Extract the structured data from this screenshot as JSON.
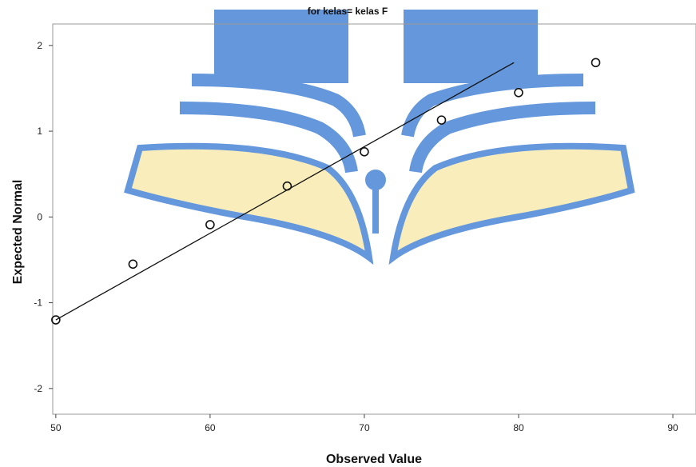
{
  "colors": {
    "watermark_blue": "#4a86d6",
    "watermark_yellow": "#f8ecb0",
    "line": "#111111",
    "marker": "#111111"
  },
  "chart_data": {
    "type": "scatter",
    "title": "for kelas= kelas F",
    "xlabel": "Observed Value",
    "ylabel": "Expected Normal",
    "xlim": [
      49.8,
      91.5
    ],
    "ylim": [
      -2.3,
      2.25
    ],
    "xticks": [
      50,
      60,
      70,
      80,
      90
    ],
    "yticks": [
      2,
      1,
      0,
      -1,
      -2
    ],
    "xtick_labels": [
      "50",
      "60",
      "70",
      "80",
      "90"
    ],
    "ytick_labels": [
      "2",
      "1",
      "0",
      "-1",
      "-2"
    ],
    "grid": false,
    "points": [
      {
        "x": 50,
        "y": -1.2
      },
      {
        "x": 55,
        "y": -0.55
      },
      {
        "x": 60,
        "y": -0.09
      },
      {
        "x": 65,
        "y": 0.36
      },
      {
        "x": 70,
        "y": 0.76
      },
      {
        "x": 75,
        "y": 1.13
      },
      {
        "x": 80,
        "y": 1.45
      },
      {
        "x": 85,
        "y": 1.8
      }
    ],
    "reference_line": {
      "x": [
        50,
        79.7
      ],
      "y": [
        -1.2,
        1.8
      ]
    }
  }
}
